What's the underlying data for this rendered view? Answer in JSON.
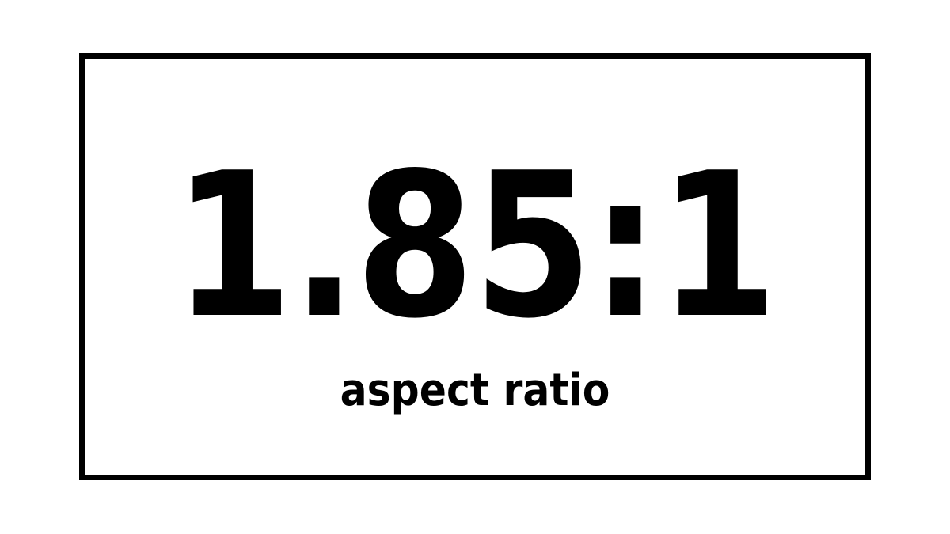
{
  "ratio_text": "1.85:1",
  "caption_text": "aspect ratio",
  "colors": {
    "background": "#ffffff",
    "ink": "#000000"
  }
}
